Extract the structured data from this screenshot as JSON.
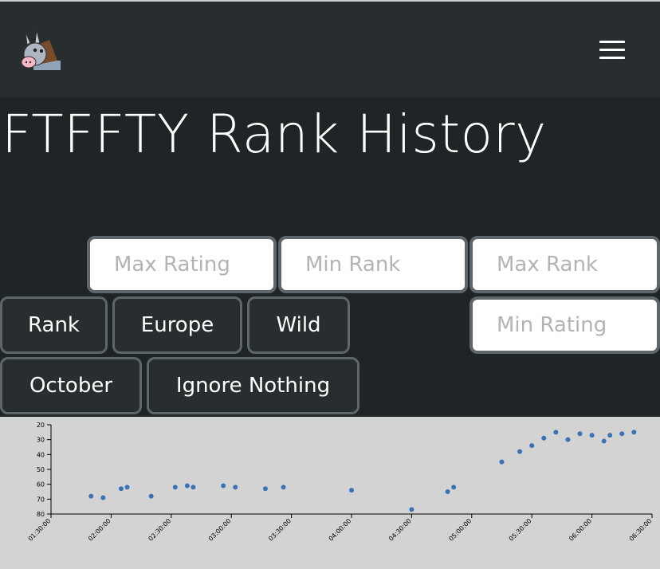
{
  "navbar": {
    "logo_icon": "donkey-logo-icon",
    "menu_icon": "hamburger-menu-icon"
  },
  "page": {
    "title": "FTFFTY Rank History"
  },
  "filters": {
    "max_rating_placeholder": "Max Rating",
    "min_rank_placeholder": "Min Rank",
    "max_rank_placeholder": "Max Rank",
    "min_rating_placeholder": "Min Rating",
    "mode_label": "Rank",
    "region_label": "Europe",
    "format_label": "Wild",
    "month_label": "October",
    "ignore_label": "Ignore Nothing"
  },
  "colors": {
    "point": "#3a73b5",
    "background": "#d3d3d3"
  },
  "chart_data": {
    "type": "scatter",
    "y_reversed": true,
    "ylim": [
      20,
      80
    ],
    "y_ticks": [
      "20",
      "30",
      "40",
      "50",
      "60",
      "70",
      "80"
    ],
    "xlim": [
      "01:30:00",
      "06:30:00"
    ],
    "x_ticks": [
      "01:30:00",
      "02:00:00",
      "02:30:00",
      "03:00:00",
      "03:30:00",
      "04:00:00",
      "04:30:00",
      "05:00:00",
      "05:30:00",
      "06:00:00",
      "06:30:00"
    ],
    "points": [
      {
        "x": "01:50:00",
        "y": 68
      },
      {
        "x": "01:56:00",
        "y": 69
      },
      {
        "x": "02:05:00",
        "y": 63
      },
      {
        "x": "02:08:00",
        "y": 62
      },
      {
        "x": "02:20:00",
        "y": 68
      },
      {
        "x": "02:32:00",
        "y": 62
      },
      {
        "x": "02:38:00",
        "y": 61
      },
      {
        "x": "02:41:00",
        "y": 62
      },
      {
        "x": "02:56:00",
        "y": 61
      },
      {
        "x": "03:02:00",
        "y": 62
      },
      {
        "x": "03:17:00",
        "y": 63
      },
      {
        "x": "03:26:00",
        "y": 62
      },
      {
        "x": "04:00:00",
        "y": 64
      },
      {
        "x": "04:30:00",
        "y": 77
      },
      {
        "x": "04:48:00",
        "y": 65
      },
      {
        "x": "04:51:00",
        "y": 62
      },
      {
        "x": "05:15:00",
        "y": 45
      },
      {
        "x": "05:24:00",
        "y": 38
      },
      {
        "x": "05:30:00",
        "y": 34
      },
      {
        "x": "05:36:00",
        "y": 29
      },
      {
        "x": "05:42:00",
        "y": 25
      },
      {
        "x": "05:48:00",
        "y": 30
      },
      {
        "x": "05:54:00",
        "y": 26
      },
      {
        "x": "06:00:00",
        "y": 27
      },
      {
        "x": "06:06:00",
        "y": 31
      },
      {
        "x": "06:09:00",
        "y": 27
      },
      {
        "x": "06:15:00",
        "y": 26
      },
      {
        "x": "06:21:00",
        "y": 25
      }
    ]
  }
}
